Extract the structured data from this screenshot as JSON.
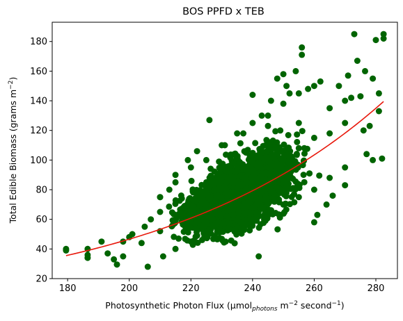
{
  "chart_data": {
    "type": "scatter",
    "title": "BOS PPFD x TEB",
    "xlabel": {
      "prefix": "Photosynthetic Photon Flux (µmol",
      "sub": "photons",
      "mid": " m",
      "sup1": "−2",
      "suffix": " second",
      "sup2": "−1",
      "end": ")"
    },
    "ylabel": {
      "prefix": "Total Edible Biomass (grams m",
      "sup": "−2",
      "end": ")"
    },
    "xlim": [
      175,
      287
    ],
    "ylim": [
      20,
      193
    ],
    "xticks": [
      180,
      200,
      220,
      240,
      260,
      280
    ],
    "yticks": [
      20,
      40,
      60,
      80,
      100,
      120,
      140,
      160,
      180
    ],
    "grid": false,
    "colors": {
      "points": "#006400",
      "fit": "#e8180c"
    },
    "trend": {
      "model": "exponential",
      "x_start": 179.5,
      "x_end": 282.5,
      "y_start": 35.5,
      "y_end": 139.5
    },
    "cloud": {
      "description_of_bulk": "dense point cloud spanning x 190-275",
      "points": [
        [
          205,
          55
        ],
        [
          210,
          52
        ],
        [
          215,
          58
        ],
        [
          220,
          60
        ],
        [
          225,
          70
        ],
        [
          230,
          75
        ],
        [
          235,
          80
        ],
        [
          240,
          88
        ],
        [
          245,
          95
        ],
        [
          250,
          100
        ],
        [
          255,
          108
        ],
        [
          260,
          115
        ],
        [
          265,
          118
        ],
        [
          270,
          125
        ],
        [
          200,
          48
        ],
        [
          198,
          45
        ],
        [
          210,
          75
        ],
        [
          215,
          85
        ],
        [
          220,
          95
        ],
        [
          225,
          100
        ],
        [
          230,
          110
        ],
        [
          235,
          118
        ],
        [
          240,
          125
        ],
        [
          245,
          130
        ],
        [
          250,
          138
        ],
        [
          255,
          145
        ],
        [
          260,
          150
        ],
        [
          215,
          40
        ],
        [
          220,
          45
        ],
        [
          225,
          48
        ],
        [
          230,
          52
        ],
        [
          235,
          55
        ],
        [
          240,
          60
        ],
        [
          245,
          65
        ],
        [
          250,
          70
        ],
        [
          255,
          75
        ],
        [
          260,
          80
        ],
        [
          265,
          88
        ],
        [
          270,
          95
        ],
        [
          210,
          65
        ],
        [
          225,
          85
        ],
        [
          235,
          95
        ],
        [
          245,
          110
        ],
        [
          255,
          125
        ],
        [
          265,
          135
        ],
        [
          270,
          140
        ]
      ]
    },
    "outliers": [
      [
        179.5,
        39
      ],
      [
        179.5,
        40
      ],
      [
        186.5,
        34
      ],
      [
        186.5,
        36
      ],
      [
        186.5,
        40
      ],
      [
        191,
        45
      ],
      [
        193,
        37
      ],
      [
        195,
        33
      ],
      [
        196,
        29.5
      ],
      [
        198,
        35
      ],
      [
        201,
        50
      ],
      [
        204,
        44
      ],
      [
        206,
        28
      ],
      [
        207,
        60
      ],
      [
        210,
        75
      ],
      [
        211,
        35
      ],
      [
        213,
        80
      ],
      [
        215,
        90
      ],
      [
        219,
        100
      ],
      [
        222,
        106
      ],
      [
        226,
        127
      ],
      [
        231,
        110
      ],
      [
        237,
        118
      ],
      [
        240,
        144
      ],
      [
        242,
        35
      ],
      [
        243,
        130
      ],
      [
        245,
        123
      ],
      [
        246,
        140
      ],
      [
        248,
        155
      ],
      [
        250,
        158
      ],
      [
        251,
        150
      ],
      [
        252,
        145
      ],
      [
        254,
        160
      ],
      [
        256,
        171
      ],
      [
        256,
        176
      ],
      [
        258,
        148
      ],
      [
        260,
        58
      ],
      [
        261,
        63
      ],
      [
        262,
        153
      ],
      [
        264,
        70
      ],
      [
        266,
        76
      ],
      [
        268,
        150
      ],
      [
        270,
        83
      ],
      [
        271,
        157
      ],
      [
        272,
        142
      ],
      [
        273,
        185
      ],
      [
        274,
        167
      ],
      [
        275,
        143
      ],
      [
        276,
        120
      ],
      [
        276.5,
        160
      ],
      [
        277,
        104
      ],
      [
        278,
        123
      ],
      [
        279,
        155
      ],
      [
        279,
        100
      ],
      [
        280,
        181
      ],
      [
        281,
        145
      ],
      [
        281,
        133
      ],
      [
        282,
        101
      ],
      [
        282.5,
        185
      ],
      [
        282.5,
        182
      ]
    ]
  }
}
